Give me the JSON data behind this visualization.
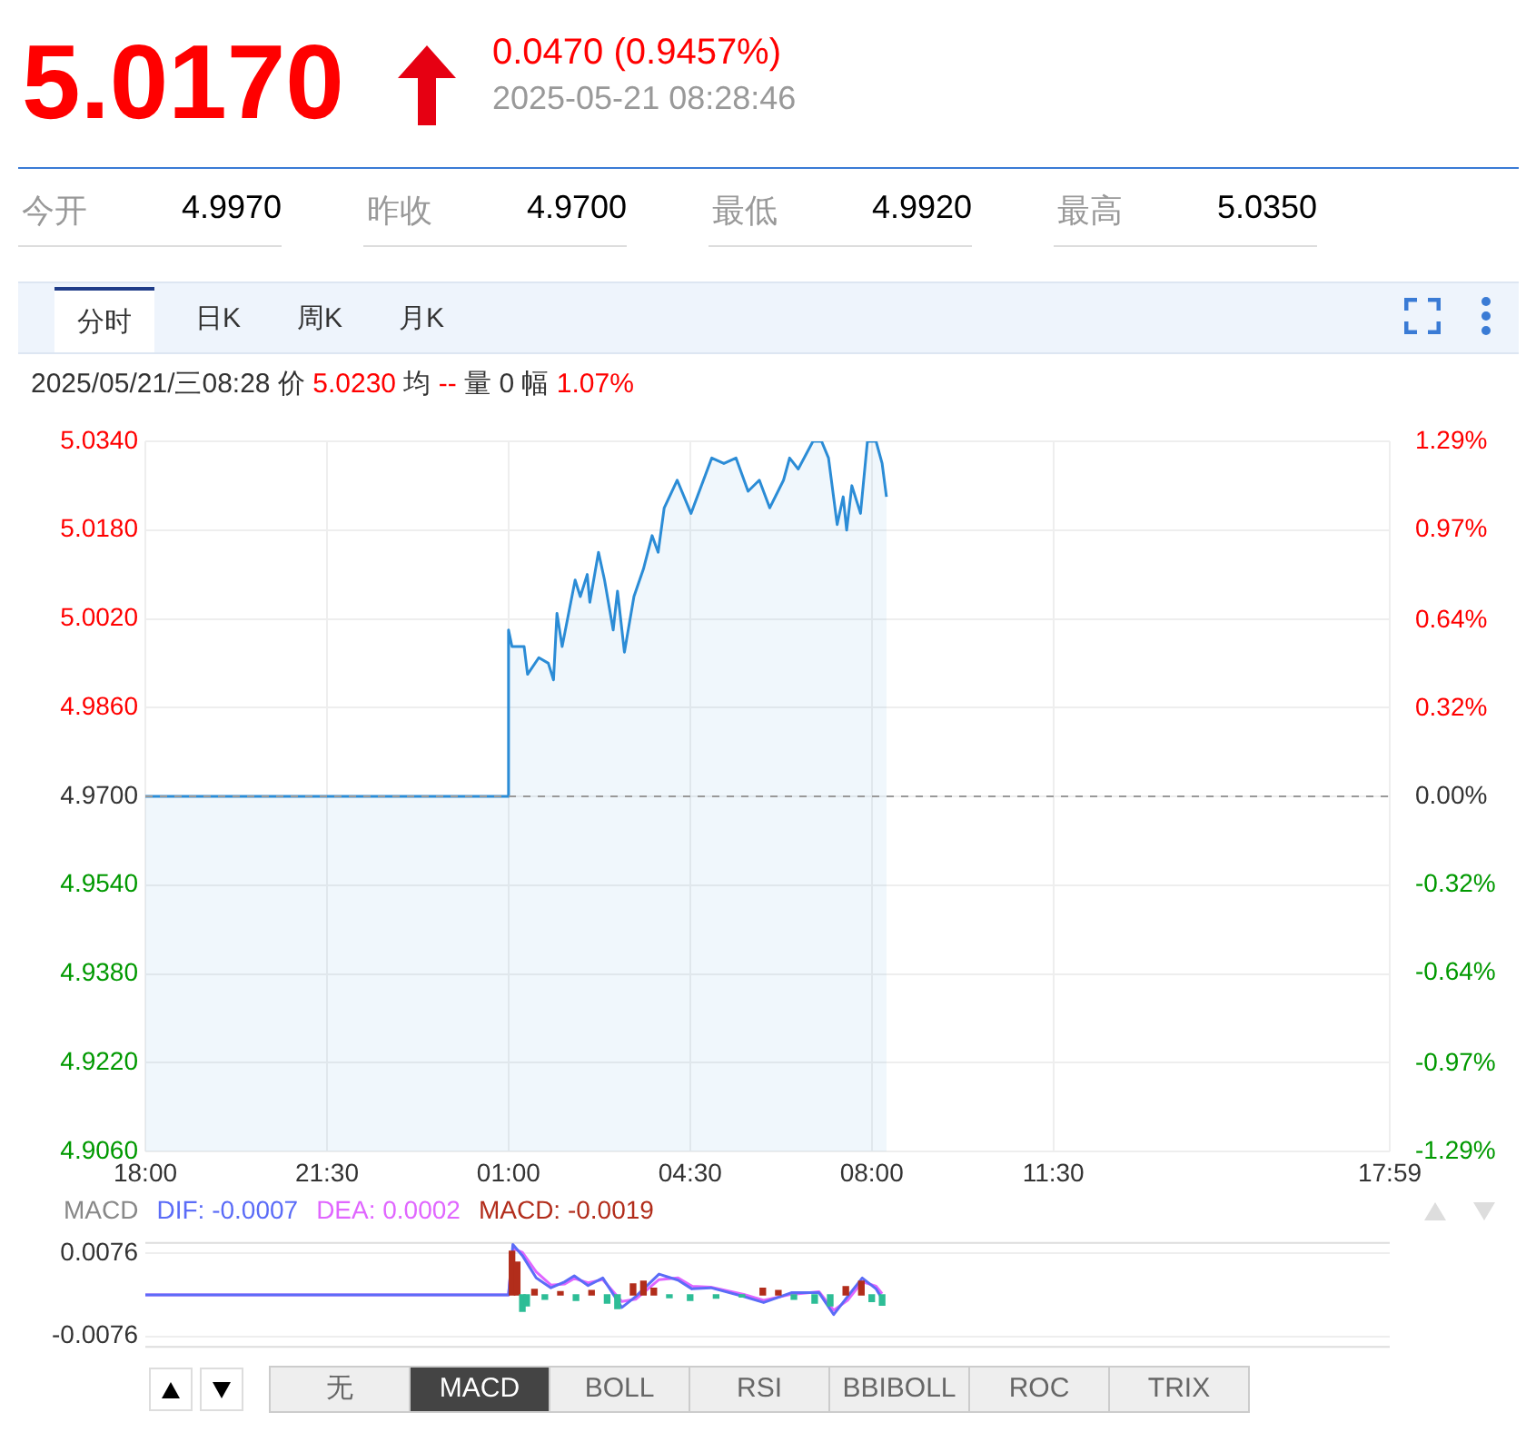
{
  "chart_data": [
    {
      "type": "other",
      "title": "5.0170",
      "subtitle": "0.0470 (0.9457%)",
      "annotations": [
        "2025-05-21 08:28:46",
        "今开",
        "4.9970",
        "昨收",
        "4.9700",
        "最低",
        "4.9920",
        "最高",
        "5.0350",
        "分时",
        "日K",
        "周K",
        "月K",
        "2025/05/21/三08:28 价",
        "5.0230",
        "均",
        "--",
        "量 0 幅",
        "1.07%"
      ]
    },
    {
      "type": "area",
      "legend": false,
      "grid": true,
      "marker": "none",
      "xlim": [
        "2025-05-20T18:00",
        "2025-05-21T17:59"
      ],
      "xticks": [
        {
          "value": "2025-05-20T18:00",
          "label": "18:00"
        },
        {
          "value": "2025-05-20T21:30",
          "label": "21:30"
        },
        {
          "value": "2025-05-21T01:00",
          "label": "01:00"
        },
        {
          "value": "2025-05-21T04:30",
          "label": "04:30"
        },
        {
          "value": "2025-05-21T08:00",
          "label": "08:00"
        },
        {
          "value": "2025-05-21T11:30",
          "label": "11:30"
        },
        {
          "value": "2025-05-21T17:59",
          "label": "17:59"
        }
      ],
      "ylim": [
        4.906,
        5.034
      ],
      "yticks": [
        {
          "value": 4.906,
          "label": "4.9060"
        },
        {
          "value": 4.922,
          "label": "4.9220"
        },
        {
          "value": 4.938,
          "label": "4.9380"
        },
        {
          "value": 4.954,
          "label": "4.9540"
        },
        {
          "value": 4.97,
          "label": "4.9700"
        },
        {
          "value": 4.986,
          "label": "4.9860"
        },
        {
          "value": 5.002,
          "label": "5.0020"
        },
        {
          "value": 5.018,
          "label": "5.0180"
        },
        {
          "value": 5.034,
          "label": "5.0340"
        }
      ],
      "y2lim": [
        -1.29,
        1.29
      ],
      "y2ticks": [
        {
          "value": -1.29,
          "label": "-1.29%"
        },
        {
          "value": -0.97,
          "label": "-0.97%"
        },
        {
          "value": -0.64,
          "label": "-0.64%"
        },
        {
          "value": -0.32,
          "label": "-0.32%"
        },
        {
          "value": 0,
          "label": "0.00%"
        },
        {
          "value": 0.32,
          "label": "0.32%"
        },
        {
          "value": 0.64,
          "label": "0.64%"
        },
        {
          "value": 0.97,
          "label": "0.97%"
        },
        {
          "value": 1.29,
          "label": "1.29%"
        }
      ],
      "ref_lines": [
        {
          "axis": "y",
          "value": 4.97,
          "color": "#999999",
          "line_style": "dashed"
        }
      ],
      "series": [
        {
          "type": "area",
          "color": "#2b8cd6",
          "x": [
            "2025-05-20T18:00",
            "2025-05-21T01:00",
            "2025-05-21T01:00",
            "2025-05-21T01:04",
            "2025-05-21T01:18",
            "2025-05-21T01:22",
            "2025-05-21T01:35",
            "2025-05-21T01:46",
            "2025-05-21T01:52",
            "2025-05-21T01:56",
            "2025-05-21T02:02",
            "2025-05-21T02:17",
            "2025-05-21T02:23",
            "2025-05-21T02:31",
            "2025-05-21T02:34",
            "2025-05-21T02:44",
            "2025-05-21T02:51",
            "2025-05-21T03:01",
            "2025-05-21T03:06",
            "2025-05-21T03:14",
            "2025-05-21T03:25",
            "2025-05-21T03:36",
            "2025-05-21T03:46",
            "2025-05-21T03:53",
            "2025-05-21T04:00",
            "2025-05-21T04:15",
            "2025-05-21T04:31",
            "2025-05-21T04:55",
            "2025-05-21T05:09",
            "2025-05-21T05:23",
            "2025-05-21T05:37",
            "2025-05-21T05:50",
            "2025-05-21T06:02",
            "2025-05-21T06:18",
            "2025-05-21T06:25",
            "2025-05-21T06:35",
            "2025-05-21T06:52",
            "2025-05-21T07:02",
            "2025-05-21T07:10",
            "2025-05-21T07:20",
            "2025-05-21T07:27",
            "2025-05-21T07:31",
            "2025-05-21T07:37",
            "2025-05-21T07:47",
            "2025-05-21T07:55",
            "2025-05-21T08:05",
            "2025-05-21T08:12",
            "2025-05-21T08:17"
          ],
          "values": [
            4.97,
            4.97,
            5.0,
            4.997,
            4.997,
            4.992,
            4.995,
            4.994,
            4.991,
            5.003,
            4.997,
            5.009,
            5.006,
            5.01,
            5.005,
            5.014,
            5.009,
            5.0,
            5.007,
            4.996,
            5.006,
            5.011,
            5.017,
            5.014,
            5.022,
            5.027,
            5.021,
            5.031,
            5.03,
            5.031,
            5.025,
            5.027,
            5.022,
            5.027,
            5.031,
            5.029,
            5.034,
            5.034,
            5.031,
            5.019,
            5.024,
            5.018,
            5.026,
            5.021,
            5.034,
            5.034,
            5.03,
            5.024
          ]
        }
      ]
    },
    {
      "type": "line",
      "title": "MACD",
      "legend": "top left",
      "grid": "y",
      "marker": "none",
      "tick_labels": "y",
      "xlim": [
        "2025-05-20T18:00",
        "2025-05-21T17:59"
      ],
      "ylim": [
        -0.0095,
        0.0095
      ],
      "yticks": [
        -0.0076,
        0.0076
      ],
      "annotations": [
        "无",
        "MACD",
        "BOLL",
        "RSI",
        "BBIBOLL",
        "ROC",
        "TRIX"
      ],
      "series": [
        {
          "type": "line",
          "name": "DIF: -0.0007",
          "color": "#5b6cf7",
          "x": [
            "2025-05-20T18:00",
            "2025-05-21T01:00",
            "2025-05-21T01:05",
            "2025-05-21T01:16",
            "2025-05-21T01:32",
            "2025-05-21T01:49",
            "2025-05-21T02:05",
            "2025-05-21T02:16",
            "2025-05-21T02:32",
            "2025-05-21T02:49",
            "2025-05-21T03:11",
            "2025-05-21T03:27",
            "2025-05-21T03:54",
            "2025-05-21T04:16",
            "2025-05-21T04:32",
            "2025-05-21T04:54",
            "2025-05-21T05:32",
            "2025-05-21T05:55",
            "2025-05-21T06:27",
            "2025-05-21T06:59",
            "2025-05-21T07:16",
            "2025-05-21T07:32",
            "2025-05-21T07:49",
            "2025-05-21T08:05",
            "2025-05-21T08:12"
          ],
          "values": [
            0,
            0,
            0.0092,
            0.0072,
            0.0031,
            0.0013,
            0.0024,
            0.0035,
            0.0017,
            0.0031,
            -0.0023,
            -0.0003,
            0.0038,
            0.0027,
            0.0011,
            0.0013,
            -0.0003,
            -0.0014,
            0.0004,
            0.0004,
            -0.0036,
            -0.0003,
            0.0031,
            0.0011,
            -0.0007
          ]
        },
        {
          "type": "line",
          "name": "DEA: 0.0002",
          "color": "#e066ff",
          "x": [
            "2025-05-20T18:00",
            "2025-05-21T01:00",
            "2025-05-21T01:05",
            "2025-05-21T01:16",
            "2025-05-21T01:32",
            "2025-05-21T01:49",
            "2025-05-21T02:05",
            "2025-05-21T02:16",
            "2025-05-21T02:32",
            "2025-05-21T02:49",
            "2025-05-21T03:11",
            "2025-05-21T03:27",
            "2025-05-21T03:54",
            "2025-05-21T04:16",
            "2025-05-21T04:32",
            "2025-05-21T04:54",
            "2025-05-21T05:32",
            "2025-05-21T05:55",
            "2025-05-21T06:27",
            "2025-05-21T06:59",
            "2025-05-21T07:16",
            "2025-05-21T07:32",
            "2025-05-21T07:49",
            "2025-05-21T08:05",
            "2025-05-21T08:12"
          ],
          "values": [
            0,
            0,
            0.0085,
            0.0078,
            0.0042,
            0.0018,
            0.002,
            0.003,
            0.0022,
            0.0028,
            -0.0012,
            -0.0008,
            0.0028,
            0.0031,
            0.0016,
            0.0014,
            0.0001,
            -0.001,
            0.0001,
            0.0006,
            -0.0028,
            -0.001,
            0.0024,
            0.0016,
            0.0002
          ]
        },
        {
          "type": "bar",
          "name": "MACD: -0.0019",
          "color": "#b22d1b",
          "x": [
            "2025-05-21T01:04",
            "2025-05-21T01:10",
            "2025-05-21T01:16",
            "2025-05-21T01:21",
            "2025-05-21T01:30",
            "2025-05-21T01:42",
            "2025-05-21T02:00",
            "2025-05-21T02:18",
            "2025-05-21T02:36",
            "2025-05-21T02:54",
            "2025-05-21T03:06",
            "2025-05-21T03:24",
            "2025-05-21T03:36",
            "2025-05-21T03:48",
            "2025-05-21T04:06",
            "2025-05-21T04:30",
            "2025-05-21T05:00",
            "2025-05-21T05:30",
            "2025-05-21T05:54",
            "2025-05-21T06:12",
            "2025-05-21T06:30",
            "2025-05-21T06:54",
            "2025-05-21T07:12",
            "2025-05-21T07:30",
            "2025-05-21T07:48",
            "2025-05-21T08:00",
            "2025-05-21T08:12"
          ],
          "values": [
            0.008,
            0.006,
            -0.003,
            -0.002,
            0.001,
            -0.0008,
            0.0006,
            -0.001,
            0.0008,
            -0.0015,
            -0.0025,
            0.002,
            0.0025,
            0.0012,
            -0.0005,
            -0.001,
            -0.0006,
            -0.0004,
            0.0012,
            0.0008,
            -0.0008,
            -0.0015,
            -0.002,
            0.0015,
            0.0025,
            -0.0012,
            -0.0019
          ],
          "colors": [
            "#b22d1b",
            "#b22d1b",
            "#2dbd96",
            "#2dbd96",
            "#b22d1b",
            "#2dbd96",
            "#b22d1b",
            "#2dbd96",
            "#b22d1b",
            "#2dbd96",
            "#2dbd96",
            "#b22d1b",
            "#b22d1b",
            "#b22d1b",
            "#2dbd96",
            "#2dbd96",
            "#2dbd96",
            "#2dbd96",
            "#b22d1b",
            "#b22d1b",
            "#2dbd96",
            "#2dbd96",
            "#2dbd96",
            "#b22d1b",
            "#b22d1b",
            "#2dbd96",
            "#2dbd96"
          ]
        }
      ]
    }
  ]
}
